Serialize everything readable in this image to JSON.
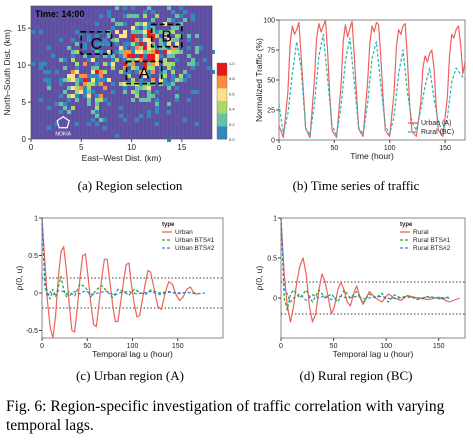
{
  "figure": {
    "caption": "Fig. 6: Region-specific investigation of traffic correlation with varying temporal lags."
  },
  "panels": {
    "a": {
      "caption": "(a) Region selection"
    },
    "b": {
      "caption": "(b) Time series of traffic"
    },
    "c": {
      "caption": "(c) Urban region (A)"
    },
    "d": {
      "caption": "(d) Rural region (BC)"
    }
  },
  "chart_data": [
    {
      "type": "heatmap",
      "panel": "a",
      "annotation": "Time: 14:00",
      "xlabel": "East–West Dist. (km)",
      "ylabel": "North–South Dist. (km)",
      "xticks": [
        0,
        5,
        10,
        15
      ],
      "yticks": [
        0,
        5,
        10,
        15
      ],
      "xlim": [
        0,
        18
      ],
      "ylim": [
        0,
        18
      ],
      "regions": [
        {
          "label": "A",
          "x": [
            9.5,
            13
          ],
          "y": [
            7.5,
            10.5
          ]
        },
        {
          "label": "B",
          "x": [
            12,
            15
          ],
          "y": [
            12.5,
            15.5
          ]
        },
        {
          "label": "C",
          "x": [
            5,
            8
          ],
          "y": [
            11.5,
            14.5
          ]
        }
      ],
      "marker_label": "NOKIA",
      "colorbar_ticks": [
        "1.0",
        "0.8",
        "0.6",
        "0.4",
        "0.2",
        "0.0"
      ],
      "colormap": [
        "#e31a1c",
        "#fd8d3c",
        "#fee08b",
        "#a6d96a",
        "#66c2a5",
        "#3288bd",
        "#5e4fa2"
      ]
    },
    {
      "type": "line",
      "panel": "b",
      "xlabel": "Time (hour)",
      "ylabel": "Normalized Traffic (%)",
      "xlim": [
        0,
        168
      ],
      "ylim": [
        0,
        100
      ],
      "xticks": [
        0,
        50,
        100,
        150
      ],
      "yticks": [
        0,
        25,
        50,
        75,
        100
      ],
      "legend_position": "bottom-right",
      "series": [
        {
          "name": "Urban (A)",
          "color": "#f0605a",
          "style": "solid",
          "x": [
            0,
            4,
            8,
            10,
            12,
            14,
            16,
            18,
            20,
            22,
            24,
            28,
            32,
            34,
            36,
            38,
            40,
            42,
            44,
            46,
            48,
            52,
            56,
            58,
            60,
            62,
            64,
            66,
            68,
            70,
            72,
            76,
            80,
            82,
            84,
            86,
            88,
            90,
            92,
            94,
            96,
            100,
            104,
            106,
            108,
            110,
            112,
            114,
            116,
            118,
            120,
            124,
            128,
            130,
            132,
            134,
            136,
            138,
            140,
            142,
            144,
            148,
            152,
            154,
            156,
            158,
            160,
            162,
            164,
            166,
            168
          ],
          "y": [
            12,
            2,
            40,
            80,
            95,
            88,
            92,
            98,
            70,
            40,
            10,
            2,
            50,
            85,
            97,
            90,
            95,
            100,
            72,
            35,
            8,
            2,
            45,
            82,
            96,
            86,
            93,
            99,
            70,
            38,
            9,
            3,
            48,
            80,
            95,
            90,
            98,
            96,
            68,
            35,
            8,
            3,
            40,
            78,
            92,
            88,
            95,
            97,
            68,
            30,
            7,
            3,
            30,
            60,
            70,
            65,
            72,
            75,
            60,
            28,
            8,
            3,
            35,
            70,
            88,
            85,
            92,
            95,
            80,
            55,
            65
          ]
        },
        {
          "name": "Rural (BC)",
          "color": "#20b5b5",
          "style": "dashed",
          "x": [
            0,
            4,
            8,
            12,
            16,
            20,
            24,
            28,
            32,
            36,
            40,
            44,
            48,
            52,
            56,
            60,
            64,
            68,
            72,
            76,
            80,
            84,
            88,
            92,
            96,
            100,
            104,
            108,
            112,
            116,
            120,
            124,
            128,
            132,
            136,
            140,
            144,
            148,
            152,
            156,
            160,
            164,
            168
          ],
          "y": [
            30,
            5,
            22,
            55,
            82,
            60,
            10,
            4,
            30,
            70,
            88,
            50,
            12,
            4,
            28,
            66,
            85,
            48,
            10,
            5,
            30,
            68,
            82,
            45,
            12,
            5,
            20,
            55,
            75,
            40,
            15,
            8,
            25,
            45,
            60,
            35,
            14,
            8,
            18,
            48,
            60,
            55,
            50
          ]
        }
      ]
    },
    {
      "type": "line",
      "panel": "c",
      "xlabel": "Temporal lag u (hour)",
      "ylabel": "ρ(0, u)",
      "legend_title": "type",
      "xlim": [
        0,
        200
      ],
      "ylim": [
        -0.6,
        1.0
      ],
      "xticks": [
        0,
        50,
        100,
        150
      ],
      "yticks": [
        -0.5,
        0.0,
        0.5,
        1.0
      ],
      "reference_lines": [
        0.2,
        -0.2
      ],
      "series": [
        {
          "name": "Urban",
          "color": "#f0605a",
          "style": "solid",
          "x": [
            0,
            3,
            6,
            9,
            12,
            15,
            18,
            21,
            24,
            27,
            30,
            33,
            36,
            39,
            42,
            45,
            48,
            51,
            54,
            57,
            60,
            63,
            66,
            69,
            72,
            75,
            78,
            81,
            84,
            87,
            90,
            93,
            96,
            99,
            102,
            105,
            108,
            111,
            114,
            117,
            120,
            124,
            128,
            132,
            136,
            140,
            144,
            148,
            152,
            156,
            160,
            164,
            168,
            172
          ],
          "y": [
            1.0,
            0.45,
            -0.1,
            -0.45,
            -0.6,
            -0.3,
            0.2,
            0.55,
            0.62,
            0.3,
            -0.15,
            -0.5,
            -0.52,
            -0.2,
            0.2,
            0.5,
            0.52,
            0.2,
            -0.15,
            -0.42,
            -0.45,
            -0.15,
            0.2,
            0.45,
            0.45,
            0.15,
            -0.15,
            -0.38,
            -0.38,
            -0.12,
            0.15,
            0.38,
            0.4,
            0.1,
            -0.15,
            -0.32,
            -0.3,
            -0.08,
            0.12,
            0.3,
            0.28,
            0.05,
            -0.18,
            -0.22,
            0.0,
            0.15,
            0.12,
            -0.02,
            -0.1,
            -0.05,
            0.05,
            0.08,
            0.0,
            -0.02
          ]
        },
        {
          "name": "Urban BTS#1",
          "color": "#2ca02c",
          "style": "dashed",
          "x": [
            0,
            3,
            6,
            9,
            12,
            15,
            18,
            21,
            24,
            27,
            30,
            36,
            42,
            48,
            54,
            60,
            66,
            72,
            78,
            84,
            90,
            96,
            102,
            108,
            114,
            120,
            130,
            140,
            150,
            160,
            170
          ],
          "y": [
            1.0,
            0.2,
            0.0,
            -0.08,
            0.05,
            -0.05,
            0.08,
            0.22,
            0.05,
            -0.05,
            0.02,
            -0.04,
            0.12,
            0.08,
            -0.05,
            0.04,
            0.1,
            0.02,
            -0.06,
            0.05,
            0.02,
            -0.03,
            0.05,
            0.01,
            -0.02,
            0.04,
            0.0,
            0.02,
            -0.01,
            0.01,
            0.0
          ]
        },
        {
          "name": "Urban BTS#2",
          "color": "#3b7dd8",
          "style": "dashed",
          "x": [
            0,
            3,
            6,
            9,
            12,
            18,
            24,
            30,
            36,
            42,
            48,
            56,
            64,
            72,
            80,
            88,
            96,
            104,
            112,
            120,
            130,
            140,
            150,
            160,
            170,
            180
          ],
          "y": [
            1.0,
            0.1,
            -0.05,
            0.02,
            -0.03,
            0.03,
            0.02,
            -0.04,
            0.02,
            -0.01,
            0.03,
            -0.02,
            0.01,
            0.02,
            -0.03,
            0.01,
            0.02,
            -0.01,
            0.0,
            0.02,
            -0.02,
            0.01,
            0.0,
            0.01,
            -0.01,
            0.0
          ]
        }
      ]
    },
    {
      "type": "line",
      "panel": "d",
      "xlabel": "Temporal lag u (hour)",
      "ylabel": "ρ(0, u)",
      "legend_title": "type",
      "xlim": [
        0,
        175
      ],
      "ylim": [
        -0.5,
        1.0
      ],
      "xticks": [
        0,
        50,
        100,
        150
      ],
      "yticks": [
        0.0,
        0.5,
        1.0
      ],
      "reference_lines": [
        0.2,
        -0.2
      ],
      "series": [
        {
          "name": "Rural",
          "color": "#f0605a",
          "style": "solid",
          "x": [
            0,
            3,
            6,
            9,
            12,
            15,
            18,
            21,
            24,
            27,
            30,
            33,
            36,
            39,
            42,
            45,
            48,
            51,
            54,
            57,
            60,
            63,
            66,
            69,
            72,
            75,
            78,
            81,
            84,
            90,
            96,
            102,
            108,
            114,
            120,
            130,
            140,
            150,
            160,
            170
          ],
          "y": [
            1.0,
            0.3,
            -0.1,
            -0.3,
            -0.1,
            0.2,
            0.4,
            0.5,
            0.3,
            -0.1,
            -0.3,
            -0.2,
            0.1,
            0.3,
            0.2,
            0.0,
            -0.2,
            -0.1,
            0.1,
            0.2,
            0.1,
            -0.05,
            -0.1,
            0.05,
            0.15,
            0.02,
            -0.08,
            0.0,
            0.08,
            0.0,
            -0.05,
            0.05,
            0.0,
            -0.03,
            0.03,
            0.0,
            -0.02,
            0.01,
            -0.05,
            0.0
          ]
        },
        {
          "name": "Rural BTS#1",
          "color": "#2ca02c",
          "style": "dashed",
          "x": [
            0,
            3,
            6,
            9,
            12,
            18,
            24,
            30,
            36,
            42,
            48,
            54,
            60,
            66,
            72,
            78,
            84,
            90,
            96,
            102,
            108,
            114,
            120,
            130,
            140,
            150,
            160
          ],
          "y": [
            1.0,
            0.0,
            -0.15,
            0.05,
            0.1,
            0.0,
            0.1,
            -0.05,
            0.1,
            0.0,
            0.05,
            -0.05,
            0.1,
            0.0,
            0.08,
            -0.06,
            0.05,
            0.0,
            0.06,
            -0.05,
            0.04,
            0.0,
            0.03,
            -0.02,
            0.02,
            0.0,
            0.01
          ]
        },
        {
          "name": "Rural BTS#2",
          "color": "#3b7dd8",
          "style": "dashed",
          "x": [
            0,
            3,
            6,
            9,
            12,
            18,
            24,
            30,
            36,
            42,
            48,
            56,
            64,
            72,
            80,
            88,
            96,
            104,
            112,
            120,
            130,
            140,
            150,
            160
          ],
          "y": [
            1.0,
            0.1,
            0.05,
            -0.05,
            0.0,
            0.05,
            -0.03,
            0.04,
            0.0,
            0.03,
            -0.02,
            0.02,
            0.0,
            0.02,
            -0.01,
            0.01,
            0.02,
            -0.01,
            0.0,
            0.01,
            0.0,
            0.01,
            -0.01,
            0.0
          ]
        }
      ]
    }
  ]
}
